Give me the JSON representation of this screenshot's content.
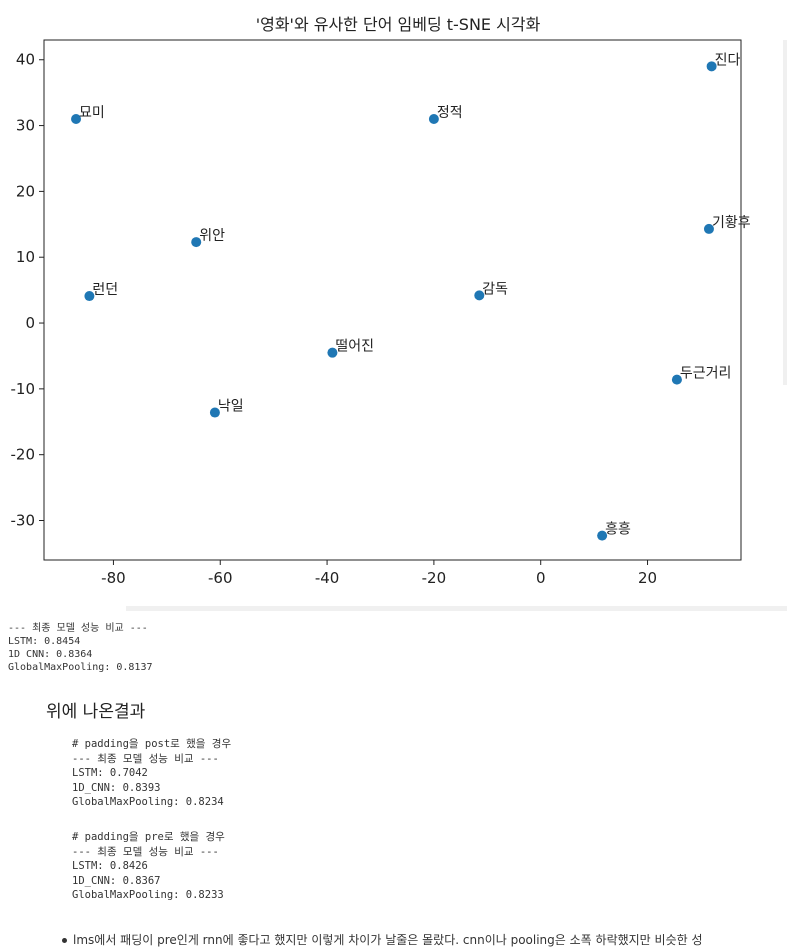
{
  "chart_data": {
    "type": "scatter",
    "title": "'영화'와 유사한 단어 임베딩 t-SNE 시각화",
    "xlabel": "",
    "ylabel": "",
    "xlim": [
      -93,
      37.5
    ],
    "ylim": [
      -36,
      43
    ],
    "xticks": [
      -80,
      -60,
      -40,
      -20,
      0,
      20
    ],
    "yticks": [
      40,
      30,
      20,
      10,
      0,
      -10,
      -20,
      -30
    ],
    "grid": false,
    "color": "#1f77b4",
    "points": [
      {
        "label": "묘미",
        "x": -87,
        "y": 31
      },
      {
        "label": "정적",
        "x": -20,
        "y": 31
      },
      {
        "label": "진다",
        "x": 32,
        "y": 39
      },
      {
        "label": "위안",
        "x": -64.5,
        "y": 12.3
      },
      {
        "label": "기황후",
        "x": 31.5,
        "y": 14.3
      },
      {
        "label": "런던",
        "x": -84.5,
        "y": 4.1
      },
      {
        "label": "감독",
        "x": -11.5,
        "y": 4.2
      },
      {
        "label": "떨어진",
        "x": -39,
        "y": -4.5
      },
      {
        "label": "두근거리",
        "x": 25.5,
        "y": -8.6
      },
      {
        "label": "낙일",
        "x": -61,
        "y": -13.6
      },
      {
        "label": "흥흥",
        "x": 11.5,
        "y": -32.3
      }
    ]
  },
  "stdout_lines": [
    "--- 최종 모델 성능 비교 ---",
    "LSTM: 0.8454",
    "1D CNN: 0.8364",
    "GlobalMaxPooling: 0.8137"
  ],
  "heading": "위에 나온결과",
  "code_post": [
    "# padding을 post로 했을 경우",
    "--- 최종 모델 성능 비교 ---",
    "LSTM: 0.7042",
    "1D_CNN: 0.8393",
    "GlobalMaxPooling: 0.8234"
  ],
  "code_pre": [
    "# padding을 pre로 했을 경우",
    "--- 최종 모델 성능 비교 ---",
    "LSTM: 0.8426",
    "1D_CNN: 0.8367",
    "GlobalMaxPooling: 0.8233"
  ],
  "bullet_text": "lms에서 패딩이 pre인게 rnn에 좋다고 했지만 이렇게 차이가 날줄은 몰랐다. cnn이나 pooling은 소폭 하락했지만 비슷한 성"
}
